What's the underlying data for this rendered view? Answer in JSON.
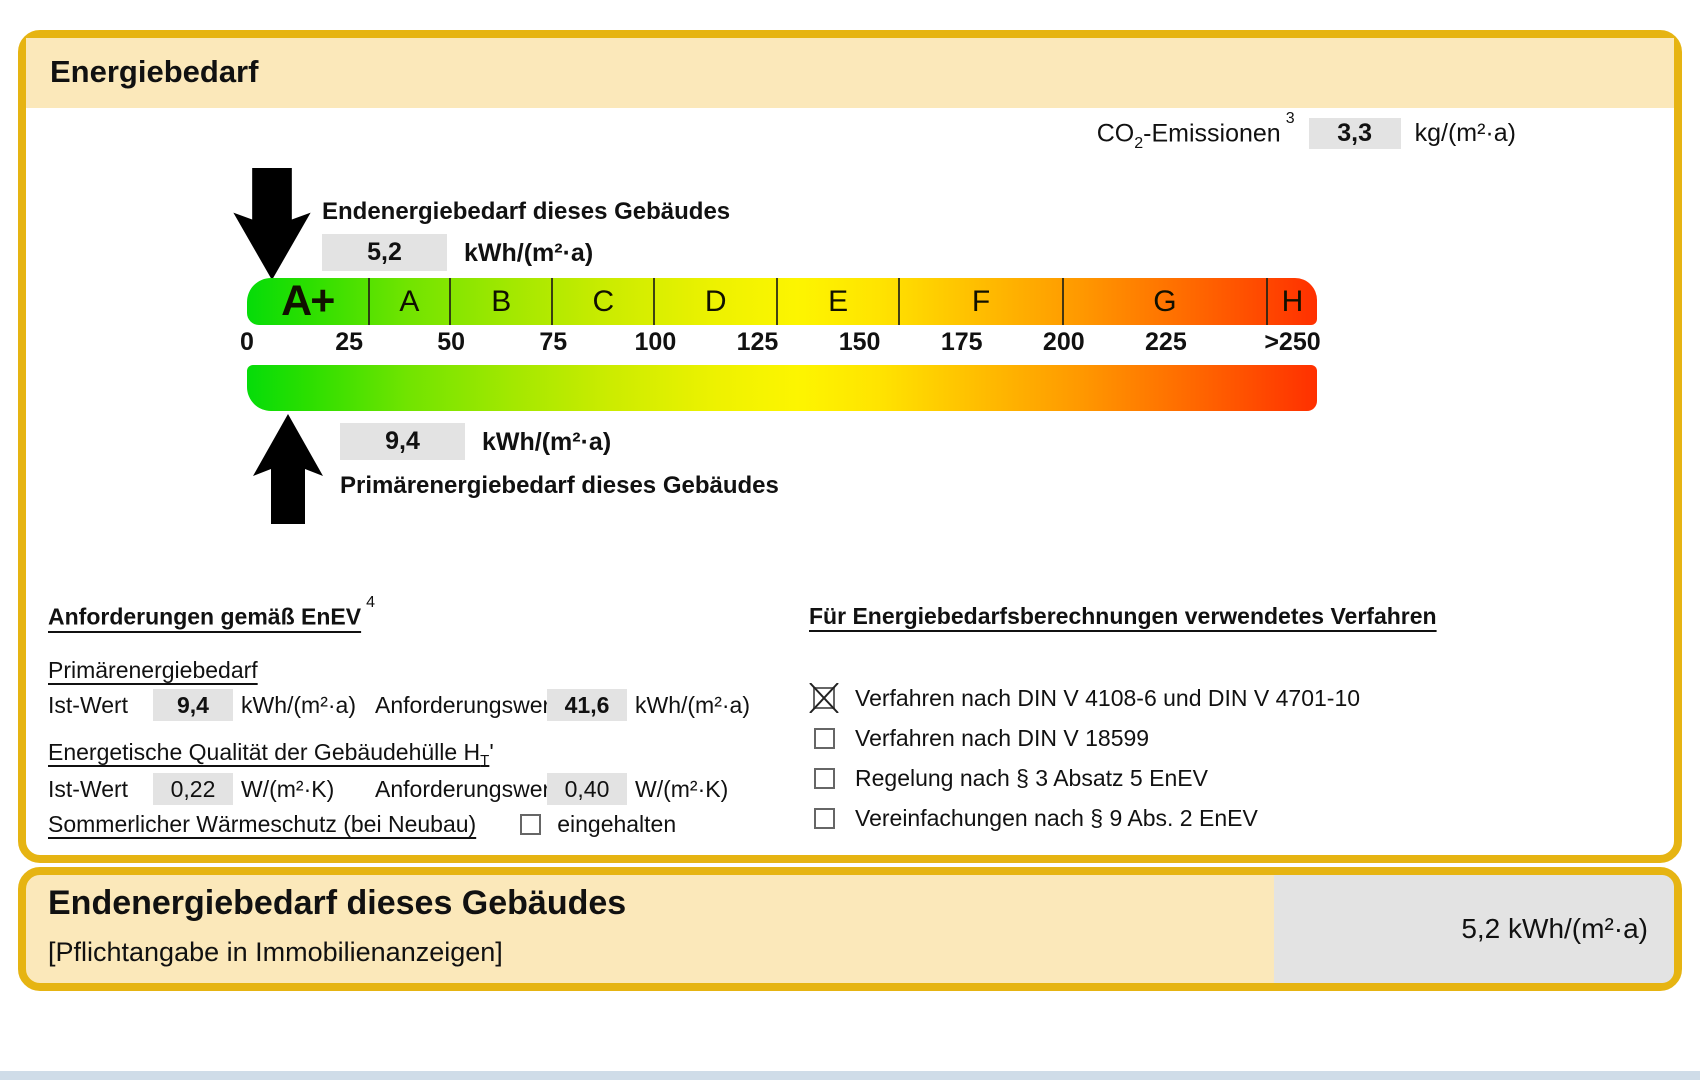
{
  "colors": {
    "gold": "#e6b412",
    "cream": "#fbe8ba",
    "value_box": "#e3e3e3"
  },
  "header": {
    "title": "Energiebedarf"
  },
  "co2": {
    "label_pre": "CO",
    "label_sub": "2",
    "label_post": "-Emissionen",
    "footnote": "3",
    "value": "3,3",
    "unit": "kg/(m²·a)"
  },
  "end_energy": {
    "label": "Endenergiebedarf dieses Gebäudes",
    "value": "5,2",
    "unit": "kWh/(m²·a)"
  },
  "primary_energy": {
    "label": "Primärenergiebedarf dieses Gebäudes",
    "value": "9,4",
    "unit": "kWh/(m²·a)"
  },
  "chart_data": {
    "type": "color-band energy scale",
    "unit": "kWh/(m²·a)",
    "axis_max": 262,
    "bands": [
      {
        "label": "A+",
        "from": 0,
        "to": 30
      },
      {
        "label": "A",
        "from": 30,
        "to": 50
      },
      {
        "label": "B",
        "from": 50,
        "to": 75
      },
      {
        "label": "C",
        "from": 75,
        "to": 100
      },
      {
        "label": "D",
        "from": 100,
        "to": 130
      },
      {
        "label": "E",
        "from": 130,
        "to": 160
      },
      {
        "label": "F",
        "from": 160,
        "to": 200
      },
      {
        "label": "G",
        "from": 200,
        "to": 250
      },
      {
        "label": "H",
        "from": 250,
        "to": 262
      }
    ],
    "ticks": [
      {
        "label": "0",
        "value": 0
      },
      {
        "label": "25",
        "value": 25
      },
      {
        "label": "50",
        "value": 50
      },
      {
        "label": "75",
        "value": 75
      },
      {
        "label": "100",
        "value": 100
      },
      {
        "label": "125",
        "value": 125
      },
      {
        "label": "150",
        "value": 150
      },
      {
        "label": "175",
        "value": 175
      },
      {
        "label": "200",
        "value": 200
      },
      {
        "label": "225",
        "value": 225
      },
      {
        "label": ">250",
        "value": 256
      }
    ],
    "markers": {
      "end_energy": 5.2,
      "primary_energy": 9.4
    }
  },
  "requirements": {
    "title": "Anforderungen gemäß EnEV",
    "footnote": "4",
    "primary": {
      "section": "Primärenergiebedarf",
      "ist_label": "Ist-Wert",
      "ist_value": "9,4",
      "ist_unit": "kWh/(m²·a)",
      "req_label": "Anforderungswert",
      "req_value": "41,6",
      "req_unit": "kWh/(m²·a)"
    },
    "envelope": {
      "section_pre": "Energetische Qualität der Gebäudehülle H",
      "section_sub": "T",
      "section_post": "'",
      "ist_label": "Ist-Wert",
      "ist_value": "0,22",
      "ist_unit": "W/(m²·K)",
      "req_label": "Anforderungswert",
      "req_value": "0,40",
      "req_unit": "W/(m²·K)"
    },
    "summer": {
      "label": "Sommerlicher Wärmeschutz (bei Neubau)",
      "option": "eingehalten",
      "checked": false
    }
  },
  "methods": {
    "title": "Für Energiebedarfsberechnungen verwendetes Verfahren",
    "items": [
      {
        "label": "Verfahren nach DIN V 4108-6 und DIN V 4701-10",
        "checked": true
      },
      {
        "label": "Verfahren nach DIN V 18599",
        "checked": false
      },
      {
        "label": "Regelung nach § 3 Absatz 5 EnEV",
        "checked": false
      },
      {
        "label": "Vereinfachungen nach § 9 Abs. 2 EnEV",
        "checked": false
      }
    ]
  },
  "footer": {
    "title": "Endenergiebedarf dieses Gebäudes",
    "subtitle": "[Pflichtangabe in Immobilienanzeigen]",
    "value": "5,2 kWh/(m²·a)"
  }
}
